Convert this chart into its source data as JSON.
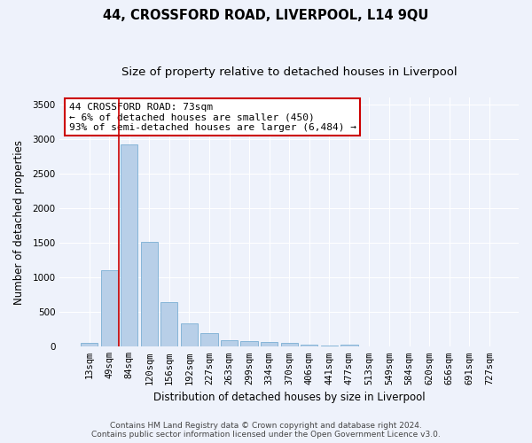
{
  "title": "44, CROSSFORD ROAD, LIVERPOOL, L14 9QU",
  "subtitle": "Size of property relative to detached houses in Liverpool",
  "xlabel": "Distribution of detached houses by size in Liverpool",
  "ylabel": "Number of detached properties",
  "categories": [
    "13sqm",
    "49sqm",
    "84sqm",
    "120sqm",
    "156sqm",
    "192sqm",
    "227sqm",
    "263sqm",
    "299sqm",
    "334sqm",
    "370sqm",
    "406sqm",
    "441sqm",
    "477sqm",
    "513sqm",
    "549sqm",
    "584sqm",
    "620sqm",
    "656sqm",
    "691sqm",
    "727sqm"
  ],
  "values": [
    50,
    1110,
    2920,
    1510,
    640,
    340,
    190,
    95,
    85,
    70,
    50,
    30,
    20,
    30,
    3,
    2,
    1,
    1,
    0,
    0,
    0
  ],
  "bar_color": "#b8cfe8",
  "bar_edge_color": "#7aaed4",
  "red_line_x": 1.5,
  "annotation_title": "44 CROSSFORD ROAD: 73sqm",
  "annotation_line1": "← 6% of detached houses are smaller (450)",
  "annotation_line2": "93% of semi-detached houses are larger (6,484) →",
  "annotation_box_facecolor": "#ffffff",
  "annotation_box_edgecolor": "#cc0000",
  "ylim": [
    0,
    3600
  ],
  "yticks": [
    0,
    500,
    1000,
    1500,
    2000,
    2500,
    3000,
    3500
  ],
  "footer_line1": "Contains HM Land Registry data © Crown copyright and database right 2024.",
  "footer_line2": "Contains public sector information licensed under the Open Government Licence v3.0.",
  "background_color": "#eef2fb",
  "plot_bg_color": "#eef2fb",
  "grid_color": "#ffffff",
  "title_fontsize": 10.5,
  "subtitle_fontsize": 9.5,
  "axis_label_fontsize": 8.5,
  "tick_fontsize": 7.5,
  "annotation_fontsize": 8,
  "footer_fontsize": 6.5
}
